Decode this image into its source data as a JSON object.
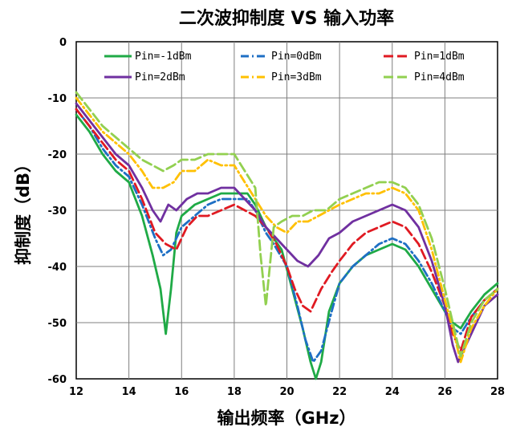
{
  "chart_data": {
    "type": "line",
    "title": "二次波抑制度 VS 输入功率",
    "xlabel": "输出频率（GHz）",
    "ylabel": "抑制度（dB）",
    "xlim": [
      12,
      28
    ],
    "ylim": [
      -60,
      0
    ],
    "xticks": [
      "12",
      "14",
      "16",
      "18",
      "20",
      "22",
      "24",
      "26",
      "28"
    ],
    "yticks": [
      "0",
      "-10",
      "-20",
      "-30",
      "-40",
      "-50",
      "-60"
    ],
    "grid": true,
    "legend_position": "top",
    "series": [
      {
        "name": "Pin=-1dBm",
        "color": "#1faa46",
        "dash": "solid",
        "points": [
          [
            12,
            -13
          ],
          [
            12.5,
            -16
          ],
          [
            13,
            -20
          ],
          [
            13.5,
            -23
          ],
          [
            14,
            -25
          ],
          [
            14.5,
            -31
          ],
          [
            14.9,
            -38
          ],
          [
            15.2,
            -44
          ],
          [
            15.4,
            -52
          ],
          [
            15.6,
            -44
          ],
          [
            15.8,
            -34
          ],
          [
            16,
            -31
          ],
          [
            16.5,
            -29
          ],
          [
            17,
            -28
          ],
          [
            17.5,
            -27
          ],
          [
            18,
            -27
          ],
          [
            18.5,
            -27
          ],
          [
            18.8,
            -29
          ],
          [
            19.2,
            -33
          ],
          [
            19.5,
            -35
          ],
          [
            19.8,
            -37
          ],
          [
            20.2,
            -44
          ],
          [
            20.6,
            -51
          ],
          [
            20.9,
            -57
          ],
          [
            21.1,
            -60
          ],
          [
            21.3,
            -57
          ],
          [
            21.6,
            -48
          ],
          [
            22,
            -43
          ],
          [
            22.5,
            -40
          ],
          [
            23,
            -38
          ],
          [
            23.5,
            -37
          ],
          [
            24,
            -36
          ],
          [
            24.5,
            -37
          ],
          [
            25,
            -40
          ],
          [
            25.5,
            -44
          ],
          [
            26,
            -48
          ],
          [
            26.3,
            -50
          ],
          [
            26.6,
            -51
          ],
          [
            27,
            -48
          ],
          [
            27.5,
            -45
          ],
          [
            28,
            -43
          ]
        ]
      },
      {
        "name": "Pin=0dBm",
        "color": "#1e6fc4",
        "dash": "dashdot",
        "points": [
          [
            12,
            -12
          ],
          [
            12.5,
            -15
          ],
          [
            13,
            -19
          ],
          [
            13.5,
            -22
          ],
          [
            14,
            -24
          ],
          [
            14.5,
            -29
          ],
          [
            15,
            -35
          ],
          [
            15.3,
            -38
          ],
          [
            15.6,
            -37
          ],
          [
            16,
            -33
          ],
          [
            16.5,
            -31
          ],
          [
            17,
            -29
          ],
          [
            17.5,
            -28
          ],
          [
            18,
            -28
          ],
          [
            18.5,
            -28
          ],
          [
            18.8,
            -30
          ],
          [
            19.2,
            -34
          ],
          [
            19.5,
            -36
          ],
          [
            20,
            -40
          ],
          [
            20.4,
            -47
          ],
          [
            20.7,
            -53
          ],
          [
            21,
            -57
          ],
          [
            21.3,
            -55
          ],
          [
            21.7,
            -48
          ],
          [
            22,
            -43
          ],
          [
            22.5,
            -40
          ],
          [
            23,
            -38
          ],
          [
            23.5,
            -36
          ],
          [
            24,
            -35
          ],
          [
            24.5,
            -36
          ],
          [
            25,
            -39
          ],
          [
            25.5,
            -43
          ],
          [
            26,
            -48
          ],
          [
            26.3,
            -51
          ],
          [
            26.6,
            -52
          ],
          [
            27,
            -49
          ],
          [
            27.5,
            -46
          ],
          [
            28,
            -44
          ]
        ]
      },
      {
        "name": "Pin=1dBm",
        "color": "#e01a22",
        "dash": "longdash",
        "points": [
          [
            12,
            -12
          ],
          [
            12.5,
            -15
          ],
          [
            13,
            -18
          ],
          [
            13.5,
            -21
          ],
          [
            14,
            -23
          ],
          [
            14.5,
            -28
          ],
          [
            15,
            -34
          ],
          [
            15.4,
            -36
          ],
          [
            15.8,
            -37
          ],
          [
            16.2,
            -33
          ],
          [
            16.6,
            -31
          ],
          [
            17,
            -31
          ],
          [
            17.5,
            -30
          ],
          [
            18,
            -29
          ],
          [
            18.4,
            -30
          ],
          [
            18.8,
            -31
          ],
          [
            19.2,
            -33
          ],
          [
            19.6,
            -36
          ],
          [
            20,
            -40
          ],
          [
            20.3,
            -44
          ],
          [
            20.6,
            -47
          ],
          [
            20.9,
            -48
          ],
          [
            21.3,
            -44
          ],
          [
            21.7,
            -41
          ],
          [
            22,
            -39
          ],
          [
            22.5,
            -36
          ],
          [
            23,
            -34
          ],
          [
            23.5,
            -33
          ],
          [
            24,
            -32
          ],
          [
            24.5,
            -33
          ],
          [
            25,
            -36
          ],
          [
            25.5,
            -41
          ],
          [
            26,
            -47
          ],
          [
            26.3,
            -52
          ],
          [
            26.6,
            -55
          ],
          [
            27,
            -49
          ],
          [
            27.5,
            -46
          ],
          [
            28,
            -44
          ]
        ]
      },
      {
        "name": "Pin=2dBm",
        "color": "#7030a0",
        "dash": "solid",
        "points": [
          [
            12,
            -11
          ],
          [
            12.5,
            -14
          ],
          [
            13,
            -17
          ],
          [
            13.5,
            -20
          ],
          [
            14,
            -22
          ],
          [
            14.5,
            -26
          ],
          [
            14.9,
            -30
          ],
          [
            15.2,
            -32
          ],
          [
            15.5,
            -29
          ],
          [
            15.8,
            -30
          ],
          [
            16.2,
            -28
          ],
          [
            16.6,
            -27
          ],
          [
            17,
            -27
          ],
          [
            17.5,
            -26
          ],
          [
            18,
            -26
          ],
          [
            18.4,
            -28
          ],
          [
            18.8,
            -30
          ],
          [
            19.2,
            -33
          ],
          [
            19.6,
            -35
          ],
          [
            20,
            -37
          ],
          [
            20.4,
            -39
          ],
          [
            20.8,
            -40
          ],
          [
            21.2,
            -38
          ],
          [
            21.6,
            -35
          ],
          [
            22,
            -34
          ],
          [
            22.5,
            -32
          ],
          [
            23,
            -31
          ],
          [
            23.5,
            -30
          ],
          [
            24,
            -29
          ],
          [
            24.5,
            -30
          ],
          [
            25,
            -33
          ],
          [
            25.5,
            -39
          ],
          [
            26,
            -47
          ],
          [
            26.3,
            -54
          ],
          [
            26.5,
            -57
          ],
          [
            27,
            -52
          ],
          [
            27.5,
            -47
          ],
          [
            28,
            -45
          ]
        ]
      },
      {
        "name": "Pin=3dBm",
        "color": "#ffc000",
        "dash": "dashdot",
        "points": [
          [
            12,
            -10
          ],
          [
            12.5,
            -13
          ],
          [
            13,
            -16
          ],
          [
            13.5,
            -18
          ],
          [
            14,
            -20
          ],
          [
            14.5,
            -23
          ],
          [
            14.9,
            -26
          ],
          [
            15.3,
            -26
          ],
          [
            15.7,
            -25
          ],
          [
            16,
            -23
          ],
          [
            16.5,
            -23
          ],
          [
            17,
            -21
          ],
          [
            17.5,
            -22
          ],
          [
            18,
            -22
          ],
          [
            18.4,
            -25
          ],
          [
            18.8,
            -28
          ],
          [
            19.2,
            -31
          ],
          [
            19.6,
            -33
          ],
          [
            20,
            -34
          ],
          [
            20.4,
            -32
          ],
          [
            20.8,
            -32
          ],
          [
            21.2,
            -31
          ],
          [
            21.6,
            -30
          ],
          [
            22,
            -29
          ],
          [
            22.5,
            -28
          ],
          [
            23,
            -27
          ],
          [
            23.5,
            -27
          ],
          [
            24,
            -26
          ],
          [
            24.5,
            -27
          ],
          [
            25,
            -30
          ],
          [
            25.5,
            -37
          ],
          [
            26,
            -46
          ],
          [
            26.3,
            -51
          ],
          [
            26.6,
            -57
          ],
          [
            27,
            -51
          ],
          [
            27.5,
            -47
          ],
          [
            28,
            -44
          ]
        ]
      },
      {
        "name": "Pin=4dBm",
        "color": "#92d050",
        "dash": "longdash",
        "points": [
          [
            12,
            -9
          ],
          [
            12.5,
            -12
          ],
          [
            13,
            -15
          ],
          [
            13.5,
            -17
          ],
          [
            14,
            -19
          ],
          [
            14.5,
            -21
          ],
          [
            14.9,
            -22
          ],
          [
            15.3,
            -23
          ],
          [
            15.7,
            -22
          ],
          [
            16,
            -21
          ],
          [
            16.5,
            -21
          ],
          [
            17,
            -20
          ],
          [
            17.5,
            -20
          ],
          [
            18,
            -20
          ],
          [
            18.4,
            -23
          ],
          [
            18.8,
            -26
          ],
          [
            19,
            -38
          ],
          [
            19.2,
            -47
          ],
          [
            19.5,
            -33
          ],
          [
            19.8,
            -32
          ],
          [
            20.2,
            -31
          ],
          [
            20.6,
            -31
          ],
          [
            21,
            -30
          ],
          [
            21.5,
            -30
          ],
          [
            22,
            -28
          ],
          [
            22.5,
            -27
          ],
          [
            23,
            -26
          ],
          [
            23.5,
            -25
          ],
          [
            24,
            -25
          ],
          [
            24.5,
            -26
          ],
          [
            25,
            -29
          ],
          [
            25.5,
            -35
          ],
          [
            26,
            -44
          ],
          [
            26.3,
            -50
          ],
          [
            26.6,
            -56
          ],
          [
            27,
            -50
          ],
          [
            27.5,
            -46
          ],
          [
            28,
            -44
          ]
        ]
      }
    ]
  }
}
